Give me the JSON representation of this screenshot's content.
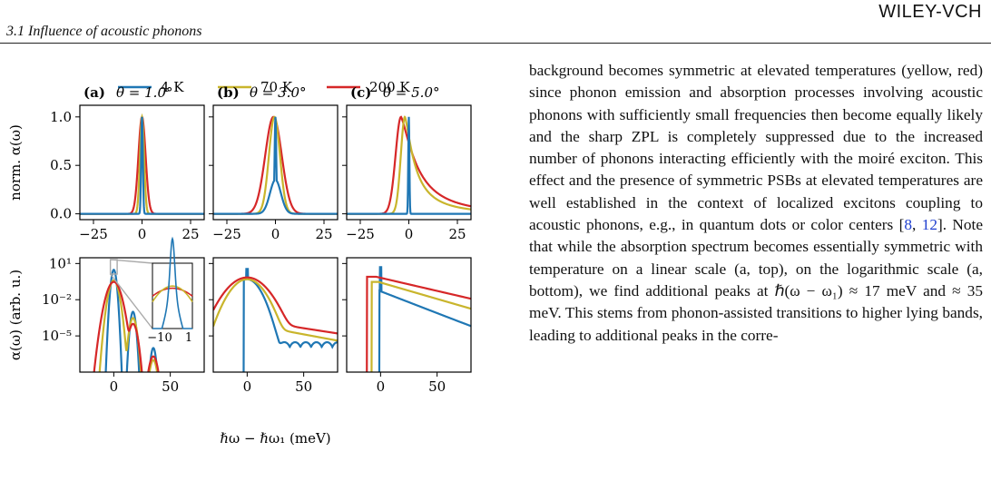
{
  "header": {
    "section": "3.1   Influence of acoustic phonons",
    "publisher": "WILEY-VCH"
  },
  "figure": {
    "legend": [
      {
        "name": "4 K",
        "color": "#1f77b4"
      },
      {
        "name": "70 K",
        "color": "#c9b52c"
      },
      {
        "name": "200 K",
        "color": "#d62728"
      }
    ],
    "panels": [
      {
        "label": "(a)",
        "theta": "θ = 1.0°"
      },
      {
        "label": "(b)",
        "theta": "θ = 3.0°"
      },
      {
        "label": "(c)",
        "theta": "θ = 5.0°"
      }
    ],
    "top_ylabel": "norm. α(ω)",
    "bottom_ylabel": "α(ω) (arb. u.)",
    "xlabel": "ℏω − ℏω₁ (meV)",
    "top_yticks": [
      "0.0",
      "0.5",
      "1.0"
    ],
    "top_xticks": [
      "−25",
      "0",
      "25"
    ],
    "bottom_yticks": [
      "10¹",
      "10⁻²",
      "10⁻⁵"
    ],
    "bottom_xticks": [
      "0",
      "50"
    ],
    "inset_xticks": [
      "−10",
      "1"
    ]
  },
  "chart_data": [
    {
      "type": "line",
      "panel": "(a) top",
      "title": "θ = 1.0°",
      "ylabel": "norm. α(ω)",
      "xlim": [
        -32,
        32
      ],
      "ylim": [
        -0.06,
        1.12
      ],
      "series": [
        {
          "name": "4 K",
          "shape": {
            "peak": 0,
            "width": 0.6
          }
        },
        {
          "name": "70 K",
          "shape": {
            "peak": 0,
            "width": 1.5
          }
        },
        {
          "name": "200 K",
          "shape": {
            "peak": 0,
            "width": 2.6
          }
        }
      ]
    },
    {
      "type": "line",
      "panel": "(b) top",
      "title": "θ = 3.0°",
      "xlim": [
        -32,
        32
      ],
      "ylim": [
        -0.06,
        1.12
      ],
      "series": [
        {
          "name": "4 K",
          "shape": {
            "peak": 0,
            "width": 0.6,
            "base_width": 4
          }
        },
        {
          "name": "70 K",
          "shape": {
            "peak": -0.5,
            "width": 4
          }
        },
        {
          "name": "200 K",
          "shape": {
            "peak": -1,
            "width": 6
          }
        }
      ]
    },
    {
      "type": "line",
      "panel": "(c) top",
      "title": "θ = 5.0°",
      "xlim": [
        -32,
        32
      ],
      "ylim": [
        -0.06,
        1.12
      ],
      "series": [
        {
          "name": "4 K",
          "shape": {
            "peak": 0,
            "width": 0.4
          }
        },
        {
          "name": "70 K",
          "shape": {
            "peak": -2,
            "width": 3,
            "tail": 6
          }
        },
        {
          "name": "200 K",
          "shape": {
            "peak": -4,
            "width": 4,
            "tail": 10
          }
        }
      ]
    },
    {
      "type": "line",
      "panel": "(a) bottom",
      "ylabel": "α(ω) (arb. u.)",
      "xlabel": "ℏω − ℏω₁ (meV)",
      "yscale": "log",
      "xlim": [
        -30,
        80
      ],
      "ylim": [
        1e-08,
        30
      ],
      "peaks_meV": [
        0,
        17,
        35
      ],
      "series": [
        {
          "name": "4 K"
        },
        {
          "name": "70 K"
        },
        {
          "name": "200 K"
        }
      ]
    },
    {
      "type": "line",
      "panel": "(b) bottom",
      "xlabel": "ℏω − ℏω₁ (meV)",
      "yscale": "log",
      "xlim": [
        -30,
        80
      ],
      "ylim": [
        1e-08,
        30
      ],
      "series": [
        {
          "name": "4 K"
        },
        {
          "name": "70 K"
        },
        {
          "name": "200 K"
        }
      ]
    },
    {
      "type": "line",
      "panel": "(c) bottom",
      "xlabel": "ℏω − ℏω₁ (meV)",
      "yscale": "log",
      "xlim": [
        -30,
        80
      ],
      "ylim": [
        1e-08,
        30
      ],
      "series": [
        {
          "name": "4 K"
        },
        {
          "name": "70 K"
        },
        {
          "name": "200 K"
        }
      ]
    }
  ],
  "text": {
    "paragraph": [
      {
        "t": "background becomes symmetric at elevated temperatures (yellow, red) since phonon emission and absorption processes involving acoustic phonons with sufficiently small frequencies then become equally likely and the sharp ZPL is completely suppressed due to the increased number of phonons interacting efficiently with the moiré exciton. This effect and the presence of symmetric PSBs at elevated temperatures are well established in the context of localized excitons coupling to acoustic phonons, e.g., in quantum dots or color centers ["
      },
      {
        "t": "8",
        "cite": true
      },
      {
        "t": ", "
      },
      {
        "t": "12",
        "cite": true
      },
      {
        "t": "]. Note that while the absorption spectrum becomes essentially symmetric with temperature on a linear scale (a, top), on the logarithmic scale (a, bottom), we find additional peaks at ℏ(ω − ω₁) ≈ 17 meV and ≈ 35 meV. This stems from phonon-assisted transitions to higher lying bands, leading to additional peaks in the corre-"
      }
    ]
  }
}
